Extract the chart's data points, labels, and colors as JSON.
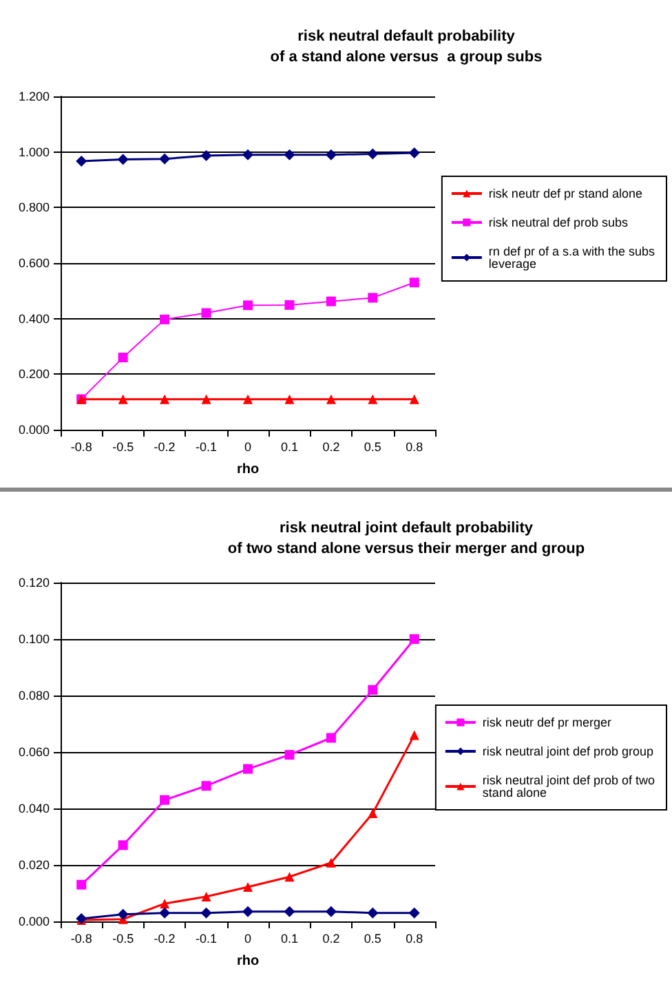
{
  "chart_data": [
    {
      "type": "line",
      "title": "risk neutral default probability\nof a stand alone versus  a group subs",
      "xlabel": "rho",
      "categories": [
        "-0.8",
        "-0.5",
        "-0.2",
        "-0.1",
        "0",
        "0.1",
        "0.2",
        "0.5",
        "0.8"
      ],
      "series": [
        {
          "name": "risk neutr def pr stand alone",
          "color": "#ff0000",
          "marker": "triangle",
          "values": [
            0.11,
            0.11,
            0.11,
            0.11,
            0.11,
            0.11,
            0.11,
            0.11,
            0.11
          ]
        },
        {
          "name": "risk neutral def prob subs",
          "color": "#ff00ff",
          "marker": "square",
          "values": [
            0.11,
            0.26,
            0.397,
            0.42,
            0.448,
            0.449,
            0.462,
            0.475,
            0.53
          ]
        },
        {
          "name": "rn def pr of a s.a with the subs leverage",
          "color": "#000080",
          "marker": "diamond",
          "values": [
            0.967,
            0.973,
            0.975,
            0.987,
            0.99,
            0.99,
            0.99,
            0.993,
            0.997
          ]
        }
      ],
      "ylim": [
        0,
        1.2
      ],
      "yticks": [
        {
          "value": 0,
          "label": "0.000"
        },
        {
          "value": 0.2,
          "label": "0.200"
        },
        {
          "value": 0.4,
          "label": "0.400"
        },
        {
          "value": 0.6,
          "label": "0.600"
        },
        {
          "value": 0.8,
          "label": "0.800"
        },
        {
          "value": 1,
          "label": "1.000"
        },
        {
          "value": 1.2,
          "label": "1.200"
        }
      ],
      "grid": "y",
      "legend": "right"
    },
    {
      "type": "line",
      "title": "risk neutral joint default probability\nof two stand alone versus their merger and group",
      "xlabel": "rho",
      "categories": [
        "-0.8",
        "-0.5",
        "-0.2",
        "-0.1",
        "0",
        "0.1",
        "0.2",
        "0.5",
        "0.8"
      ],
      "series": [
        {
          "name": "risk neutr def pr merger",
          "color": "#ff00ff",
          "marker": "square",
          "values": [
            0.013,
            0.027,
            0.043,
            0.048,
            0.054,
            0.059,
            0.065,
            0.082,
            0.1
          ]
        },
        {
          "name": "risk neutral joint def prob group",
          "color": "#000080",
          "marker": "diamond",
          "values": [
            0.001,
            0.0025,
            0.003,
            0.003,
            0.0035,
            0.0035,
            0.0035,
            0.003,
            0.003
          ]
        },
        {
          "name": "risk neutral joint def prob of two stand alone",
          "color": "#ff0000",
          "marker": "triangle",
          "values": [
            0.0005,
            0.0008,
            0.0063,
            0.0088,
            0.0122,
            0.0158,
            0.0208,
            0.0383,
            0.066
          ]
        }
      ],
      "ylim": [
        0,
        0.12
      ],
      "yticks": [
        {
          "value": 0,
          "label": "0.000"
        },
        {
          "value": 0.02,
          "label": "0.020"
        },
        {
          "value": 0.04,
          "label": "0.040"
        },
        {
          "value": 0.06,
          "label": "0.060"
        },
        {
          "value": 0.08,
          "label": "0.080"
        },
        {
          "value": 0.1,
          "label": "0.100"
        },
        {
          "value": 0.12,
          "label": "0.120"
        }
      ],
      "grid": "y",
      "legend": "right"
    }
  ]
}
